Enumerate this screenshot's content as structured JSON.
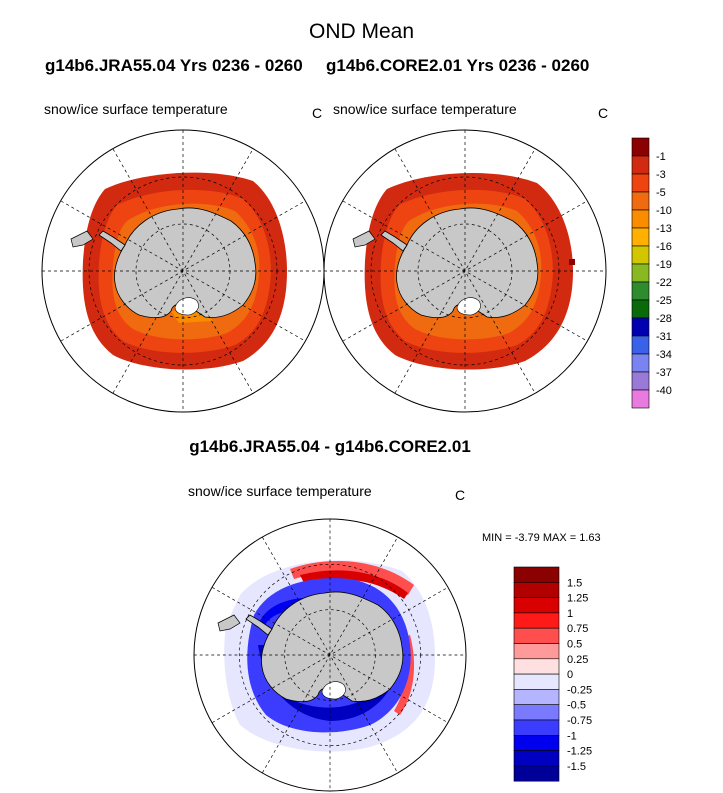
{
  "title": "OND Mean",
  "run_a": "g14b6.JRA55.04  Yrs 0236 - 0260",
  "run_b": "g14b6.CORE2.01  Yrs 0236 - 0260",
  "panels": {
    "left": {
      "label": "snow/ice surface temperature",
      "unit": "C"
    },
    "right": {
      "label": "snow/ice surface temperature",
      "unit": "C"
    },
    "diff": {
      "label": "snow/ice surface temperature",
      "unit": "C"
    }
  },
  "diff_title": "g14b6.JRA55.04 - g14b6.CORE2.01",
  "stats": {
    "min_label": "MIN =",
    "min": "-3.79",
    "max_label": "MAX =",
    "max": "1.63"
  },
  "colorbar_top": {
    "labels": [
      "-1",
      "-3",
      "-5",
      "-10",
      "-13",
      "-16",
      "-19",
      "-22",
      "-25",
      "-28",
      "-31",
      "-34",
      "-37",
      "-40"
    ],
    "colors": [
      "#8b0000",
      "#d22a10",
      "#ee4411",
      "#f06a10",
      "#fa8c00",
      "#ffb000",
      "#d2c600",
      "#88b822",
      "#2e8b2e",
      "#0a6a0a",
      "#0000b0",
      "#3a62e8",
      "#7a84f0",
      "#9a7ad8",
      "#e87ae0"
    ]
  },
  "colorbar_diff": {
    "labels": [
      "1.5",
      "1.25",
      "1",
      "0.75",
      "0.5",
      "0.25",
      "0",
      "-0.25",
      "-0.5",
      "-0.75",
      "-1",
      "-1.25",
      "-1.5"
    ],
    "colors": [
      "#8b0000",
      "#b00000",
      "#d80000",
      "#ff1a1a",
      "#ff4e4e",
      "#ff9a9a",
      "#ffe0e0",
      "#e6e6ff",
      "#b4b4ff",
      "#7a7aff",
      "#3c3cff",
      "#0000ee",
      "#0000c0",
      "#000099"
    ]
  }
}
